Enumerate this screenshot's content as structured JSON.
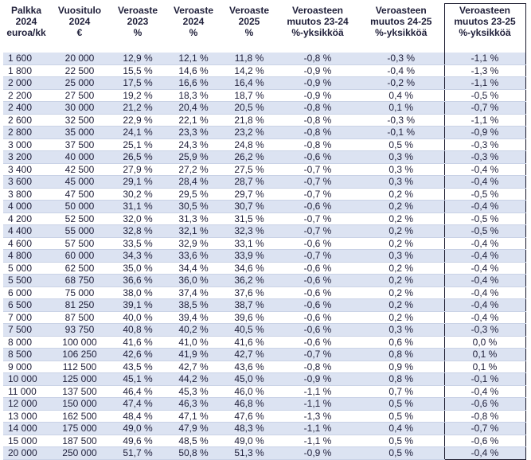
{
  "headers": [
    [
      "Palkka",
      "2024",
      "euroa/kk"
    ],
    [
      "Vuositulo",
      "2024",
      "€"
    ],
    [
      "Veroaste",
      "2023",
      "%"
    ],
    [
      "Veroaste",
      "2024",
      "%"
    ],
    [
      "Veroaste",
      "2025",
      "%"
    ],
    [
      "Veroasteen",
      "muutos 23-24",
      "%-yksikköä"
    ],
    [
      "Veroasteen",
      "muutos 24-25",
      "%-yksikköä"
    ],
    [
      "Veroasteen",
      "muutos 23-25",
      "%-yksikköä"
    ]
  ],
  "rows": [
    [
      "1 600",
      "20 000",
      "12,9 %",
      "12,1 %",
      "11,8 %",
      "-0,8 %",
      "-0,3 %",
      "-1,1 %"
    ],
    [
      "1 800",
      "22 500",
      "15,5 %",
      "14,6 %",
      "14,2 %",
      "-0,9 %",
      "-0,4 %",
      "-1,3 %"
    ],
    [
      "2 000",
      "25 000",
      "17,5 %",
      "16,6 %",
      "16,4 %",
      "-0,9 %",
      "-0,2 %",
      "-1,1 %"
    ],
    [
      "2 200",
      "27 500",
      "19,2 %",
      "18,3 %",
      "18,7 %",
      "-0,9 %",
      "0,4 %",
      "-0,5 %"
    ],
    [
      "2 400",
      "30 000",
      "21,2 %",
      "20,4 %",
      "20,5 %",
      "-0,8 %",
      "0,1 %",
      "-0,7 %"
    ],
    [
      "2 600",
      "32 500",
      "22,9 %",
      "22,1 %",
      "21,8 %",
      "-0,8 %",
      "-0,3 %",
      "-1,1 %"
    ],
    [
      "2 800",
      "35 000",
      "24,1 %",
      "23,3 %",
      "23,2 %",
      "-0,8 %",
      "-0,1 %",
      "-0,9 %"
    ],
    [
      "3 000",
      "37 500",
      "25,1 %",
      "24,3 %",
      "24,8 %",
      "-0,8 %",
      "0,5 %",
      "-0,3 %"
    ],
    [
      "3 200",
      "40 000",
      "26,5 %",
      "25,9 %",
      "26,2 %",
      "-0,6 %",
      "0,3 %",
      "-0,3 %"
    ],
    [
      "3 400",
      "42 500",
      "27,9 %",
      "27,2 %",
      "27,5 %",
      "-0,7 %",
      "0,3 %",
      "-0,4 %"
    ],
    [
      "3 600",
      "45 000",
      "29,1 %",
      "28,4 %",
      "28,7 %",
      "-0,7 %",
      "0,3 %",
      "-0,4 %"
    ],
    [
      "3 800",
      "47 500",
      "30,2 %",
      "29,5 %",
      "29,7 %",
      "-0,7 %",
      "0,2 %",
      "-0,5 %"
    ],
    [
      "4 000",
      "50 000",
      "31,1 %",
      "30,5 %",
      "30,7 %",
      "-0,6 %",
      "0,2 %",
      "-0,4 %"
    ],
    [
      "4 200",
      "52 500",
      "32,0 %",
      "31,3 %",
      "31,5 %",
      "-0,7 %",
      "0,2 %",
      "-0,5 %"
    ],
    [
      "4 400",
      "55 000",
      "32,8 %",
      "32,1 %",
      "32,3 %",
      "-0,7 %",
      "0,2 %",
      "-0,5 %"
    ],
    [
      "4 600",
      "57 500",
      "33,5 %",
      "32,9 %",
      "33,1 %",
      "-0,6 %",
      "0,2 %",
      "-0,4 %"
    ],
    [
      "4 800",
      "60 000",
      "34,3 %",
      "33,6 %",
      "33,9 %",
      "-0,7 %",
      "0,3 %",
      "-0,4 %"
    ],
    [
      "5 000",
      "62 500",
      "35,0 %",
      "34,4 %",
      "34,6 %",
      "-0,6 %",
      "0,2 %",
      "-0,4 %"
    ],
    [
      "5 500",
      "68 750",
      "36,6 %",
      "36,0 %",
      "36,2 %",
      "-0,6 %",
      "0,2 %",
      "-0,4 %"
    ],
    [
      "6 000",
      "75 000",
      "38,0 %",
      "37,4 %",
      "37,6 %",
      "-0,6 %",
      "0,2 %",
      "-0,4 %"
    ],
    [
      "6 500",
      "81 250",
      "39,1 %",
      "38,5 %",
      "38,7 %",
      "-0,6 %",
      "0,2 %",
      "-0,4 %"
    ],
    [
      "7 000",
      "87 500",
      "40,0 %",
      "39,4 %",
      "39,6 %",
      "-0,6 %",
      "0,2 %",
      "-0,4 %"
    ],
    [
      "7 500",
      "93 750",
      "40,8 %",
      "40,2 %",
      "40,5 %",
      "-0,6 %",
      "0,3 %",
      "-0,3 %"
    ],
    [
      "8 000",
      "100 000",
      "41,6 %",
      "41,0 %",
      "41,6 %",
      "-0,6 %",
      "0,6 %",
      "0,0 %"
    ],
    [
      "8 500",
      "106 250",
      "42,6 %",
      "41,9 %",
      "42,7 %",
      "-0,7 %",
      "0,8 %",
      "0,1 %"
    ],
    [
      "9 000",
      "112 500",
      "43,5 %",
      "42,7 %",
      "43,6 %",
      "-0,8 %",
      "0,9 %",
      "0,1 %"
    ],
    [
      "10 000",
      "125 000",
      "45,1 %",
      "44,2 %",
      "45,0 %",
      "-0,9 %",
      "0,8 %",
      "-0,1 %"
    ],
    [
      "11 000",
      "137 500",
      "46,4 %",
      "45,3 %",
      "46,0 %",
      "-1,1 %",
      "0,7 %",
      "-0,4 %"
    ],
    [
      "12 000",
      "150 000",
      "47,4 %",
      "46,3 %",
      "46,8 %",
      "-1,1 %",
      "0,5 %",
      "-0,6 %"
    ],
    [
      "13 000",
      "162 500",
      "48,4 %",
      "47,1 %",
      "47,6 %",
      "-1,3 %",
      "0,5 %",
      "-0,8 %"
    ],
    [
      "14 000",
      "175 000",
      "49,0 %",
      "47,9 %",
      "48,3 %",
      "-1,1 %",
      "0,4 %",
      "-0,7 %"
    ],
    [
      "15 000",
      "187 500",
      "49,6 %",
      "48,5 %",
      "49,0 %",
      "-1,1 %",
      "0,5 %",
      "-0,6 %"
    ],
    [
      "20 000",
      "250 000",
      "51,7 %",
      "50,8 %",
      "51,3 %",
      "-0,9 %",
      "0,5 %",
      "-0,4 %"
    ]
  ]
}
